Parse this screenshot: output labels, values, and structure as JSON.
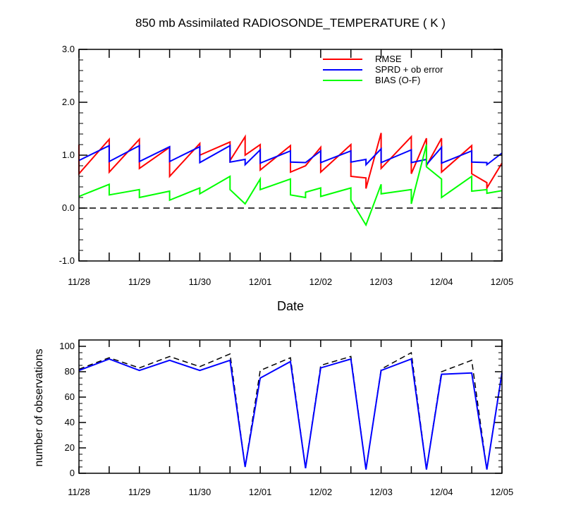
{
  "colors": {
    "rmse": "#ff0000",
    "sprd": "#0000ff",
    "bias": "#00ff00",
    "zero_line": "#000000",
    "possible": "#000000",
    "used": "#0000ff"
  },
  "chart_data": [
    {
      "type": "line",
      "title": "850 mb Assimilated RADIOSONDE_TEMPERATURE ( K )",
      "xlabel": "Date",
      "ylabel": "",
      "xlim": [
        0,
        7
      ],
      "ylim": [
        -1.0,
        3.0
      ],
      "ytick_labels": [
        "-1.0",
        "0.0",
        "1.0",
        "2.0",
        "3.0"
      ],
      "ytick_values": [
        -1.0,
        0.0,
        1.0,
        2.0,
        3.0
      ],
      "xtick_labels": [
        "11/28",
        "11/29",
        "11/30",
        "12/01",
        "12/02",
        "12/03",
        "12/04",
        "12/05"
      ],
      "legend_position": "top-right",
      "grid": false,
      "reference_line": {
        "y": 0.0,
        "style": "dashed"
      },
      "series": [
        {
          "name": "RMSE",
          "color": "#ff0000",
          "points": [
            [
              0.0,
              1.2
            ],
            [
              0.0,
              0.65
            ],
            [
              0.5,
              1.3
            ],
            [
              0.5,
              0.68
            ],
            [
              1.0,
              1.3
            ],
            [
              1.0,
              0.75
            ],
            [
              1.5,
              1.15
            ],
            [
              1.5,
              0.6
            ],
            [
              2.0,
              1.22
            ],
            [
              2.0,
              1.0
            ],
            [
              2.5,
              1.25
            ],
            [
              2.5,
              0.9
            ],
            [
              2.75,
              1.35
            ],
            [
              2.75,
              1.0
            ],
            [
              3.0,
              1.2
            ],
            [
              3.0,
              0.72
            ],
            [
              3.5,
              1.18
            ],
            [
              3.5,
              0.68
            ],
            [
              3.75,
              0.8
            ],
            [
              4.0,
              1.15
            ],
            [
              4.0,
              0.68
            ],
            [
              4.5,
              1.2
            ],
            [
              4.5,
              0.6
            ],
            [
              4.75,
              0.57
            ],
            [
              4.75,
              0.37
            ],
            [
              5.0,
              1.42
            ],
            [
              5.0,
              0.75
            ],
            [
              5.5,
              1.35
            ],
            [
              5.5,
              0.65
            ],
            [
              5.75,
              1.32
            ],
            [
              5.75,
              0.8
            ],
            [
              6.0,
              1.32
            ],
            [
              6.0,
              0.68
            ],
            [
              6.5,
              1.18
            ],
            [
              6.5,
              0.65
            ],
            [
              6.75,
              0.48
            ],
            [
              6.75,
              0.38
            ],
            [
              7.0,
              0.85
            ]
          ]
        },
        {
          "name": "SPRD + ob error",
          "color": "#0000ff",
          "points": [
            [
              0.0,
              0.9
            ],
            [
              0.5,
              1.18
            ],
            [
              0.5,
              0.88
            ],
            [
              1.0,
              1.18
            ],
            [
              1.0,
              0.88
            ],
            [
              1.5,
              1.16
            ],
            [
              1.5,
              0.88
            ],
            [
              2.0,
              1.16
            ],
            [
              2.0,
              0.86
            ],
            [
              2.5,
              1.18
            ],
            [
              2.5,
              0.87
            ],
            [
              2.75,
              0.92
            ],
            [
              2.75,
              0.82
            ],
            [
              3.0,
              1.1
            ],
            [
              3.0,
              0.85
            ],
            [
              3.5,
              1.08
            ],
            [
              3.5,
              0.87
            ],
            [
              3.75,
              0.86
            ],
            [
              4.0,
              1.08
            ],
            [
              4.0,
              0.86
            ],
            [
              4.5,
              1.08
            ],
            [
              4.5,
              0.87
            ],
            [
              4.75,
              0.92
            ],
            [
              4.75,
              0.82
            ],
            [
              5.0,
              1.12
            ],
            [
              5.0,
              0.86
            ],
            [
              5.5,
              1.1
            ],
            [
              5.5,
              0.86
            ],
            [
              5.75,
              0.92
            ],
            [
              5.75,
              0.82
            ],
            [
              6.0,
              1.15
            ],
            [
              6.0,
              0.85
            ],
            [
              6.5,
              1.08
            ],
            [
              6.5,
              0.87
            ],
            [
              6.75,
              0.86
            ],
            [
              6.75,
              0.82
            ],
            [
              7.0,
              1.04
            ]
          ]
        },
        {
          "name": "BIAS (O-F)",
          "color": "#00ff00",
          "points": [
            [
              0.0,
              0.22
            ],
            [
              0.5,
              0.45
            ],
            [
              0.5,
              0.25
            ],
            [
              1.0,
              0.35
            ],
            [
              1.0,
              0.2
            ],
            [
              1.5,
              0.32
            ],
            [
              1.5,
              0.15
            ],
            [
              2.0,
              0.38
            ],
            [
              2.0,
              0.27
            ],
            [
              2.5,
              0.6
            ],
            [
              2.5,
              0.35
            ],
            [
              2.75,
              0.08
            ],
            [
              3.0,
              0.55
            ],
            [
              3.0,
              0.35
            ],
            [
              3.5,
              0.55
            ],
            [
              3.5,
              0.25
            ],
            [
              3.75,
              0.2
            ],
            [
              3.75,
              0.3
            ],
            [
              4.0,
              0.38
            ],
            [
              4.0,
              0.22
            ],
            [
              4.5,
              0.38
            ],
            [
              4.5,
              0.15
            ],
            [
              4.75,
              -0.32
            ],
            [
              5.0,
              0.45
            ],
            [
              5.0,
              0.27
            ],
            [
              5.5,
              0.35
            ],
            [
              5.5,
              0.08
            ],
            [
              5.75,
              1.2
            ],
            [
              5.75,
              0.78
            ],
            [
              6.0,
              0.55
            ],
            [
              6.0,
              0.2
            ],
            [
              6.5,
              0.6
            ],
            [
              6.5,
              0.32
            ],
            [
              6.75,
              0.35
            ],
            [
              6.75,
              0.28
            ],
            [
              7.0,
              0.33
            ]
          ]
        }
      ]
    },
    {
      "type": "line",
      "title": "",
      "xlabel": "",
      "ylabel": "number of observations",
      "xlim": [
        0,
        7
      ],
      "ylim": [
        0,
        105
      ],
      "ytick_labels": [
        "0",
        "20",
        "40",
        "60",
        "80",
        "100"
      ],
      "ytick_values": [
        0,
        20,
        40,
        60,
        80,
        100
      ],
      "xtick_labels": [
        "11/28",
        "11/29",
        "11/30",
        "12/01",
        "12/02",
        "12/03",
        "12/04",
        "12/05"
      ],
      "grid": false,
      "series": [
        {
          "color": "#000000",
          "style": "dashed",
          "points": [
            [
              0.0,
              82
            ],
            [
              0.5,
              91
            ],
            [
              1.0,
              83
            ],
            [
              1.5,
              92
            ],
            [
              2.0,
              84
            ],
            [
              2.5,
              94
            ],
            [
              2.75,
              5
            ],
            [
              3.0,
              81
            ],
            [
              3.5,
              91
            ],
            [
              3.75,
              4
            ],
            [
              4.0,
              85
            ],
            [
              4.5,
              92
            ],
            [
              4.75,
              3
            ],
            [
              5.0,
              82
            ],
            [
              5.5,
              95
            ],
            [
              5.75,
              3
            ],
            [
              6.0,
              80
            ],
            [
              6.5,
              89
            ],
            [
              6.75,
              3
            ],
            [
              7.0,
              80
            ]
          ]
        },
        {
          "color": "#0000ff",
          "style": "solid",
          "points": [
            [
              0.0,
              81
            ],
            [
              0.5,
              90
            ],
            [
              1.0,
              81
            ],
            [
              1.5,
              89
            ],
            [
              2.0,
              81
            ],
            [
              2.5,
              89
            ],
            [
              2.75,
              5
            ],
            [
              3.0,
              75
            ],
            [
              3.5,
              88
            ],
            [
              3.75,
              4
            ],
            [
              4.0,
              83
            ],
            [
              4.5,
              90
            ],
            [
              4.75,
              3
            ],
            [
              5.0,
              81
            ],
            [
              5.5,
              90
            ],
            [
              5.75,
              3
            ],
            [
              6.0,
              78
            ],
            [
              6.5,
              79
            ],
            [
              6.75,
              3
            ],
            [
              7.0,
              79
            ]
          ]
        }
      ]
    }
  ]
}
